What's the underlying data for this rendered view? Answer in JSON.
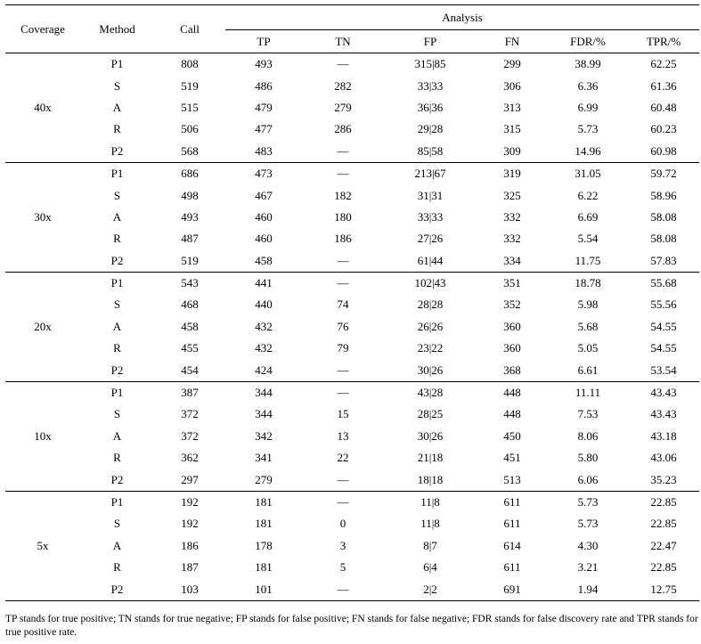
{
  "table": {
    "headers": {
      "coverage": "Coverage",
      "method": "Method",
      "call": "Call",
      "analysis": "Analysis",
      "tp": "TP",
      "tn": "TN",
      "fp": "FP",
      "fn": "FN",
      "fdr": "FDR/%",
      "tpr": "TPR/%"
    },
    "groups": [
      {
        "coverage": "40x",
        "rows": [
          [
            "P1",
            "808",
            "493",
            "—",
            "315|85",
            "299",
            "38.99",
            "62.25"
          ],
          [
            "S",
            "519",
            "486",
            "282",
            "33|33",
            "306",
            "6.36",
            "61.36"
          ],
          [
            "A",
            "515",
            "479",
            "279",
            "36|36",
            "313",
            "6.99",
            "60.48"
          ],
          [
            "R",
            "506",
            "477",
            "286",
            "29|28",
            "315",
            "5.73",
            "60.23"
          ],
          [
            "P2",
            "568",
            "483",
            "—",
            "85|58",
            "309",
            "14.96",
            "60.98"
          ]
        ]
      },
      {
        "coverage": "30x",
        "rows": [
          [
            "P1",
            "686",
            "473",
            "—",
            "213|67",
            "319",
            "31.05",
            "59.72"
          ],
          [
            "S",
            "498",
            "467",
            "182",
            "31|31",
            "325",
            "6.22",
            "58.96"
          ],
          [
            "A",
            "493",
            "460",
            "180",
            "33|33",
            "332",
            "6.69",
            "58.08"
          ],
          [
            "R",
            "487",
            "460",
            "186",
            "27|26",
            "332",
            "5.54",
            "58.08"
          ],
          [
            "P2",
            "519",
            "458",
            "—",
            "61|44",
            "334",
            "11.75",
            "57.83"
          ]
        ]
      },
      {
        "coverage": "20x",
        "rows": [
          [
            "P1",
            "543",
            "441",
            "—",
            "102|43",
            "351",
            "18.78",
            "55.68"
          ],
          [
            "S",
            "468",
            "440",
            "74",
            "28|28",
            "352",
            "5.98",
            "55.56"
          ],
          [
            "A",
            "458",
            "432",
            "76",
            "26|26",
            "360",
            "5.68",
            "54.55"
          ],
          [
            "R",
            "455",
            "432",
            "79",
            "23|22",
            "360",
            "5.05",
            "54.55"
          ],
          [
            "P2",
            "454",
            "424",
            "—",
            "30|26",
            "368",
            "6.61",
            "53.54"
          ]
        ]
      },
      {
        "coverage": "10x",
        "rows": [
          [
            "P1",
            "387",
            "344",
            "—",
            "43|28",
            "448",
            "11.11",
            "43.43"
          ],
          [
            "S",
            "372",
            "344",
            "15",
            "28|25",
            "448",
            "7.53",
            "43.43"
          ],
          [
            "A",
            "372",
            "342",
            "13",
            "30|26",
            "450",
            "8.06",
            "43.18"
          ],
          [
            "R",
            "362",
            "341",
            "22",
            "21|18",
            "451",
            "5.80",
            "43.06"
          ],
          [
            "P2",
            "297",
            "279",
            "—",
            "18|18",
            "513",
            "6.06",
            "35.23"
          ]
        ]
      },
      {
        "coverage": "5x",
        "rows": [
          [
            "P1",
            "192",
            "181",
            "—",
            "11|8",
            "611",
            "5.73",
            "22.85"
          ],
          [
            "S",
            "192",
            "181",
            "0",
            "11|8",
            "611",
            "5.73",
            "22.85"
          ],
          [
            "A",
            "186",
            "178",
            "3",
            "8|7",
            "614",
            "4.30",
            "22.47"
          ],
          [
            "R",
            "187",
            "181",
            "5",
            "6|4",
            "611",
            "3.21",
            "22.85"
          ],
          [
            "P2",
            "103",
            "101",
            "—",
            "2|2",
            "691",
            "1.94",
            "12.75"
          ]
        ]
      }
    ]
  },
  "footnote": "TP stands for true positive; TN stands for true negative; FP stands for false positive; FN stands for false negative; FDR stands for false discovery rate and TPR stands for true positive rate."
}
